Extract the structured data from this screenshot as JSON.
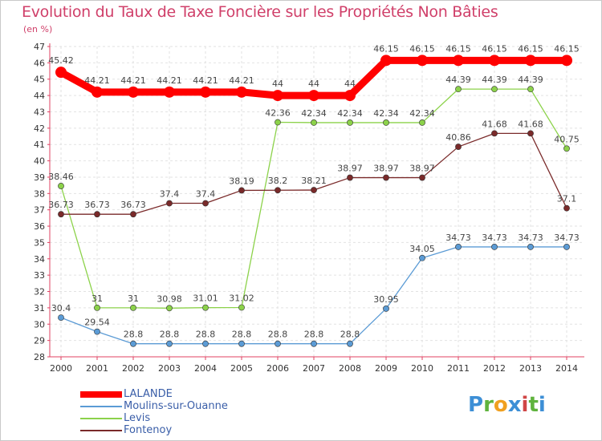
{
  "chart_data": {
    "type": "line",
    "title": "Evolution du Taux de Taxe Foncière sur les Propriétés Non Bâties",
    "ylabel": "(en %)",
    "xlabel": "",
    "ylim": [
      28,
      47
    ],
    "yticks": [
      "28",
      "29",
      "30",
      "31",
      "32",
      "33",
      "34",
      "35",
      "36",
      "37",
      "38",
      "39",
      "40",
      "41",
      "42",
      "43",
      "44",
      "45",
      "46",
      "47"
    ],
    "categories": [
      "2000",
      "2001",
      "2002",
      "2003",
      "2004",
      "2005",
      "2006",
      "2007",
      "2008",
      "2009",
      "2010",
      "2011",
      "2012",
      "2013",
      "2014"
    ],
    "grid": true,
    "legend_position": "bottom-left",
    "series": [
      {
        "name": "LALANDE",
        "color": "#ff0000",
        "values": [
          45.42,
          44.21,
          44.21,
          44.21,
          44.21,
          44.21,
          44,
          44,
          44,
          46.15,
          46.15,
          46.15,
          46.15,
          46.15,
          46.15
        ],
        "labels": [
          "45.42",
          "44.21",
          "44.21",
          "44.21",
          "44.21",
          "44.21",
          "44",
          "44",
          "44",
          "46.15",
          "46.15",
          "46.15",
          "46.15",
          "46.15",
          "46.15"
        ]
      },
      {
        "name": "Moulins-sur-Ouanne",
        "color": "#5b9bd5",
        "values": [
          30.4,
          29.54,
          28.8,
          28.8,
          28.8,
          28.8,
          28.8,
          28.8,
          28.8,
          30.95,
          34.05,
          34.73,
          34.73,
          34.73,
          34.73
        ],
        "labels": [
          "30.4",
          "29.54",
          "28.8",
          "28.8",
          "28.8",
          "28.8",
          "28.8",
          "28.8",
          "28.8",
          "30.95",
          "34.05",
          "34.73",
          "34.73",
          "34.73",
          "34.73"
        ]
      },
      {
        "name": "Levis",
        "color": "#8cd24a",
        "values": [
          38.46,
          31,
          31,
          30.98,
          31.01,
          31.02,
          42.36,
          42.34,
          42.34,
          42.34,
          42.34,
          44.39,
          44.39,
          44.39,
          40.75
        ],
        "labels": [
          "38.46",
          "31",
          "31",
          "30.98",
          "31.01",
          "31.02",
          "42.36",
          "42.34",
          "42.34",
          "42.34",
          "42.34",
          "44.39",
          "44.39",
          "44.39",
          "40.75"
        ]
      },
      {
        "name": "Fontenoy",
        "color": "#7a2a2a",
        "values": [
          36.73,
          36.73,
          36.73,
          37.4,
          37.4,
          38.19,
          38.2,
          38.21,
          38.97,
          38.97,
          38.97,
          40.86,
          41.68,
          41.68,
          37.1
        ],
        "labels": [
          "36.73",
          "36.73",
          "36.73",
          "37.4",
          "37.4",
          "38.19",
          "38.2",
          "38.21",
          "38.97",
          "38.97",
          "38.97",
          "40.86",
          "41.68",
          "41.68",
          "37.1"
        ]
      }
    ]
  },
  "logo": {
    "text": "Proxiti",
    "letters": [
      "P",
      "r",
      "o",
      "x",
      "i",
      "t",
      "i"
    ]
  }
}
